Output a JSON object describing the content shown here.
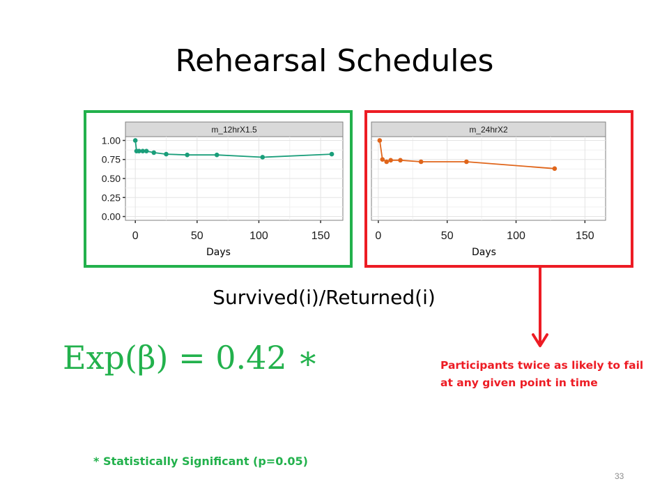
{
  "slide": {
    "title": "Rehearsal Schedules",
    "subtitle": "Survived(i)/Returned(i)",
    "formula": "Exp(β) = 0.42 ∗",
    "note": "Participants twice as likely to fail at any given point in time",
    "footnote": "* Statistically Significant (p=0.05)",
    "page_number": "33"
  },
  "colors": {
    "panel1_border": "#22b14c",
    "panel2_border": "#ed1c24",
    "series1": "#1a9e7a",
    "series2": "#e0651a",
    "formula": "#22b14c",
    "note": "#ed1c24",
    "arrow": "#ed1c24"
  },
  "chart_data": [
    {
      "type": "line",
      "panel_title": "m_12hrX1.5",
      "xlabel": "Days",
      "xlim": [
        -8,
        168
      ],
      "ylim": [
        -0.05,
        1.05
      ],
      "x_ticks": [
        "0",
        "50",
        "100",
        "150"
      ],
      "y_ticks": [
        "0.00",
        "0.25",
        "0.50",
        "0.75",
        "1.00"
      ],
      "grid": true,
      "series": [
        {
          "x": [
            0,
            1,
            3,
            6,
            9,
            15,
            25,
            42,
            66,
            103,
            159
          ],
          "y": [
            1.0,
            0.86,
            0.86,
            0.86,
            0.86,
            0.84,
            0.82,
            0.81,
            0.81,
            0.78,
            0.82
          ]
        }
      ]
    },
    {
      "type": "line",
      "panel_title": "m_24hrX2",
      "xlabel": "Days",
      "xlim": [
        -5,
        165
      ],
      "ylim": [
        -0.05,
        1.05
      ],
      "x_ticks": [
        "0",
        "50",
        "100",
        "150"
      ],
      "y_ticks": [],
      "grid": true,
      "series": [
        {
          "x": [
            1,
            3,
            6,
            9,
            16,
            31,
            64,
            128
          ],
          "y": [
            1.0,
            0.75,
            0.72,
            0.74,
            0.74,
            0.72,
            0.72,
            0.63
          ]
        }
      ]
    }
  ]
}
